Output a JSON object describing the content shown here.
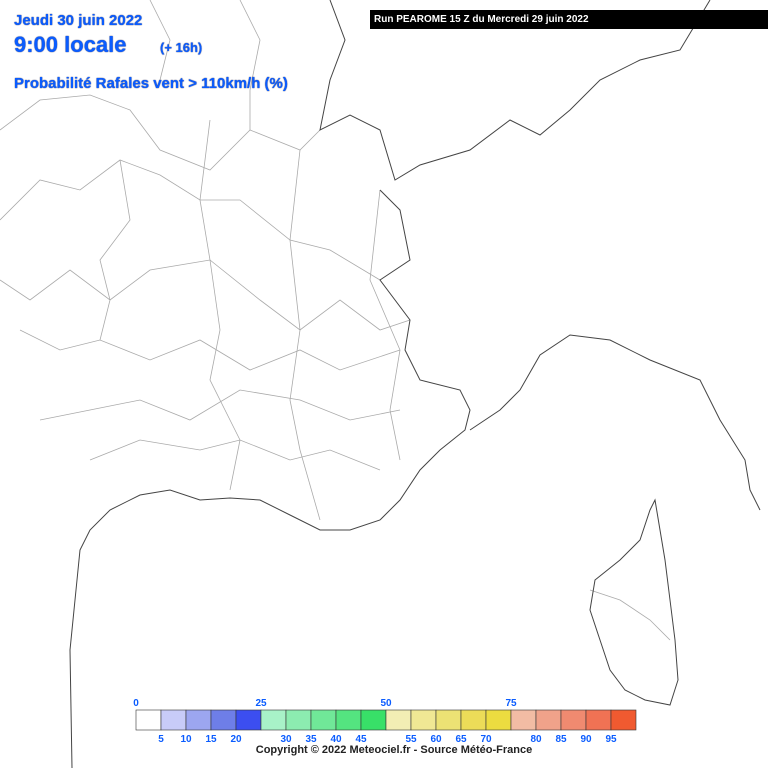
{
  "header": {
    "date": "Jeudi 30 juin 2022",
    "time": "9:00 locale",
    "lead": "(+ 16h)",
    "parameter": "Probabilité Rafales vent > 110km/h (%)",
    "run": "Run PEAROME 15 Z du Mercredi 29 juin 2022"
  },
  "legend": {
    "colors": [
      "#ffffff",
      "#c8ccf8",
      "#9ca6f0",
      "#6e7ee8",
      "#3c4ef0",
      "#a8f2c8",
      "#8cecb0",
      "#70e898",
      "#54e480",
      "#38e068",
      "#f2eeb4",
      "#f0e894",
      "#ece274",
      "#ecdc58",
      "#ecdc40",
      "#f2bca4",
      "#f0a28a",
      "#f08a70",
      "#f07254",
      "#f05a30"
    ],
    "top_labels": [
      "0",
      "25",
      "50",
      "75"
    ],
    "bottom_labels": [
      "5",
      "10",
      "15",
      "20",
      "30",
      "35",
      "40",
      "45",
      "55",
      "60",
      "65",
      "70",
      "80",
      "85",
      "90",
      "95"
    ]
  },
  "copyright": "Copyright © 2022 Meteociel.fr - Source Météo-France"
}
